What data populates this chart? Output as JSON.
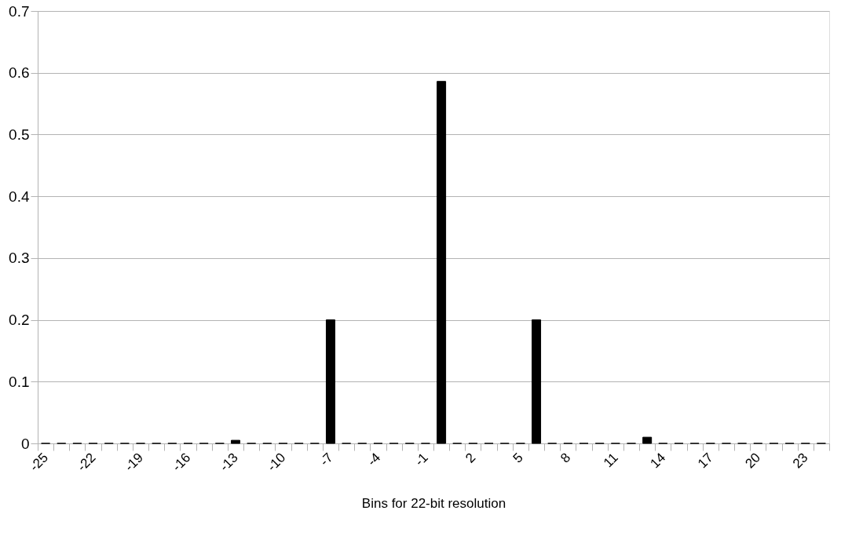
{
  "chart_data": {
    "type": "bar",
    "xlabel": "Bins for 22-bit resolution",
    "categories": [
      "-25",
      null,
      null,
      "-22",
      null,
      null,
      "-19",
      null,
      null,
      "-16",
      null,
      null,
      "-13",
      null,
      null,
      "-10",
      null,
      null,
      "-7",
      null,
      null,
      "-4",
      null,
      null,
      "-1",
      null,
      null,
      "2",
      null,
      null,
      "5",
      null,
      null,
      "8",
      null,
      null,
      "11",
      null,
      null,
      "14",
      null,
      null,
      "17",
      null,
      null,
      "20",
      null,
      null,
      "23",
      null
    ],
    "values": [
      0,
      0,
      0,
      0,
      0,
      0,
      0,
      0,
      0,
      0,
      0,
      0,
      0.005,
      0,
      0,
      0,
      0,
      0,
      0.2,
      0,
      0,
      0,
      0,
      0,
      0,
      0.586,
      0,
      0,
      0,
      0,
      0,
      0.2,
      0,
      0,
      0,
      0,
      0,
      0,
      0.01,
      0,
      0,
      0,
      0,
      0,
      0,
      0,
      0,
      0,
      0,
      0
    ],
    "color": "#000000",
    "ylim": [
      0,
      0.7
    ],
    "yticks": [
      0,
      0.1,
      0.2,
      0.3,
      0.4,
      0.5,
      0.6,
      0.7
    ],
    "grid": "y"
  }
}
